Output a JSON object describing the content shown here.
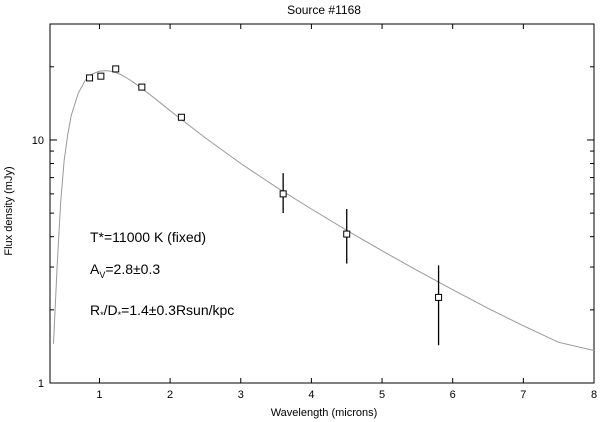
{
  "chart_data": {
    "type": "scatter",
    "title": "Source #1168",
    "xlabel": "Wavelength (microns)",
    "ylabel": "Flux density (mJy)",
    "xlim": [
      0.3,
      8
    ],
    "ylim": [
      1,
      30
    ],
    "yscale": "log",
    "x_ticks": [
      "1",
      "2",
      "3",
      "4",
      "5",
      "6",
      "7",
      "8"
    ],
    "y_ticks": [
      "1",
      "10"
    ],
    "grid": false,
    "legend": "none",
    "points": [
      {
        "x": 0.86,
        "y": 18.0,
        "yerr": 0
      },
      {
        "x": 1.02,
        "y": 18.3,
        "yerr": 0
      },
      {
        "x": 1.23,
        "y": 19.6,
        "yerr": 0
      },
      {
        "x": 1.6,
        "y": 16.5,
        "yerr": 0
      },
      {
        "x": 2.16,
        "y": 12.4,
        "yerr": 0
      },
      {
        "x": 3.6,
        "y": 6.0,
        "yerr_low": 1.0,
        "yerr_high": 1.3
      },
      {
        "x": 4.5,
        "y": 4.1,
        "yerr_low": 1.0,
        "yerr_high": 1.1
      },
      {
        "x": 5.8,
        "y": 2.25,
        "yerr_low": 0.82,
        "yerr_high": 0.8
      }
    ],
    "model_curve": {
      "x": [
        0.35,
        0.4,
        0.45,
        0.5,
        0.55,
        0.6,
        0.7,
        0.8,
        0.9,
        1.0,
        1.1,
        1.2,
        1.3,
        1.4,
        1.5,
        1.6,
        1.8,
        2.0,
        2.2,
        2.5,
        3.0,
        3.5,
        4.0,
        4.5,
        5.0,
        5.5,
        6.0,
        6.5,
        7.0,
        7.5,
        8.0
      ],
      "y": [
        1.45,
        3.0,
        5.5,
        8.2,
        10.5,
        12.6,
        15.6,
        17.6,
        18.7,
        19.2,
        19.3,
        19.1,
        18.6,
        17.9,
        17.1,
        16.3,
        14.7,
        13.2,
        11.9,
        10.2,
        8.0,
        6.4,
        5.2,
        4.25,
        3.5,
        2.9,
        2.42,
        2.03,
        1.72,
        1.47,
        1.36
      ]
    },
    "annotations": {
      "temp_label": "T*=11000 K (fixed)",
      "av_main": "A",
      "av_sub": "V",
      "av_value": "=2.8±0.3",
      "ratio_r": "R",
      "ratio_r_sub": "*",
      "ratio_mid": "/D",
      "ratio_d_sub": "*",
      "ratio_value": "=1.4±0.3Rsun/kpc"
    }
  }
}
